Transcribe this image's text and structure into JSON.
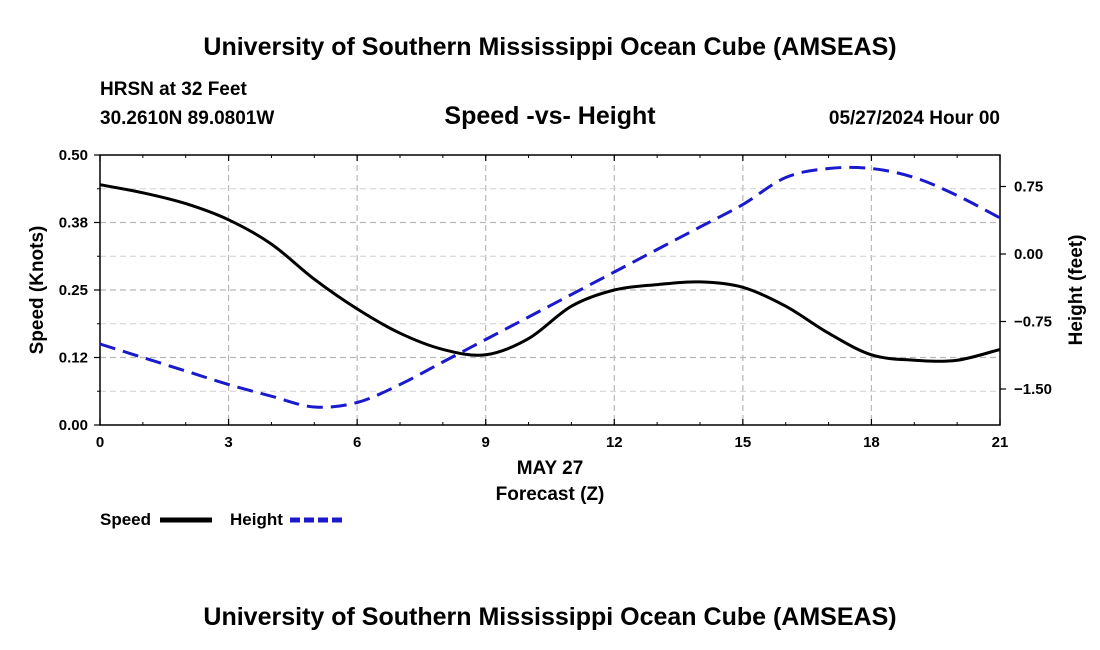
{
  "header": {
    "title": "University of Southern Mississippi Ocean Cube (AMSEAS)",
    "station": "HRSN at 32 Feet",
    "coords": "30.2610N  89.0801W",
    "datetime": "05/27/2024 Hour 00"
  },
  "footer": {
    "title": "University of Southern Mississippi Ocean Cube (AMSEAS)"
  },
  "colors": {
    "speed": "#000000",
    "height": "#1a1acc",
    "grid": "#b8b8b8"
  },
  "chart_data": {
    "type": "line",
    "title": "Speed -vs- Height",
    "xlabel": "Forecast (Z)",
    "xsublabel": "MAY 27",
    "ylabel": "Speed (Knots)",
    "y2label": "Height (feet)",
    "xlim": [
      0,
      21
    ],
    "ylim": [
      0,
      0.5
    ],
    "y2lim": [
      -1.9,
      1.1
    ],
    "xticks": [
      0,
      3,
      6,
      9,
      12,
      15,
      18,
      21
    ],
    "xtick_labels": [
      "0",
      "3",
      "6",
      "9",
      "12",
      "15",
      "18",
      "21"
    ],
    "yticks": [
      0,
      0.125,
      0.25,
      0.375,
      0.5
    ],
    "ytick_labels": [
      "0.00",
      "0.12",
      "0.25",
      "0.38",
      "0.50"
    ],
    "y2ticks": [
      -1.5,
      -0.75,
      0,
      0.75
    ],
    "y2tick_labels": [
      "-1.50",
      "-0.75",
      "0.00",
      "0.75"
    ],
    "grid": true,
    "x": [
      0,
      1,
      2,
      3,
      4,
      5,
      6,
      7,
      8,
      9,
      10,
      11,
      12,
      13,
      14,
      15,
      16,
      17,
      18,
      19,
      20,
      21
    ],
    "series": [
      {
        "name": "Speed",
        "axis": "left",
        "style": "solid",
        "values": [
          0.445,
          0.43,
          0.41,
          0.38,
          0.335,
          0.27,
          0.215,
          0.17,
          0.14,
          0.13,
          0.16,
          0.22,
          0.25,
          0.26,
          0.265,
          0.255,
          0.22,
          0.17,
          0.13,
          0.12,
          0.12,
          0.14
        ]
      },
      {
        "name": "Height",
        "axis": "right",
        "style": "dashed",
        "values": [
          -1.0,
          -1.15,
          -1.3,
          -1.45,
          -1.58,
          -1.7,
          -1.65,
          -1.45,
          -1.2,
          -0.95,
          -0.7,
          -0.45,
          -0.2,
          0.05,
          0.3,
          0.55,
          0.85,
          0.95,
          0.95,
          0.85,
          0.65,
          0.4
        ]
      }
    ],
    "legend": [
      {
        "label": "Speed",
        "series": 0
      },
      {
        "label": "Height",
        "series": 1
      }
    ],
    "legend_position": "bottom-left"
  }
}
